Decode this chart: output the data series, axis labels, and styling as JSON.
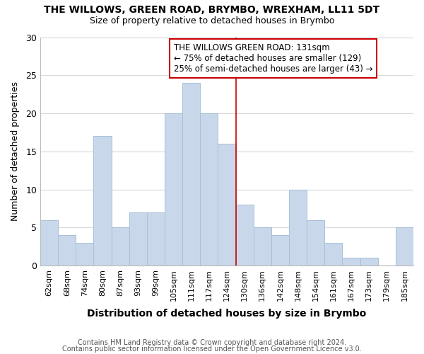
{
  "title": "THE WILLOWS, GREEN ROAD, BRYMBO, WREXHAM, LL11 5DT",
  "subtitle": "Size of property relative to detached houses in Brymbo",
  "xlabel": "Distribution of detached houses by size in Brymbo",
  "ylabel": "Number of detached properties",
  "bar_color": "#c8d8ea",
  "bar_edge_color": "#a8c0d8",
  "categories": [
    "62sqm",
    "68sqm",
    "74sqm",
    "80sqm",
    "87sqm",
    "93sqm",
    "99sqm",
    "105sqm",
    "111sqm",
    "117sqm",
    "124sqm",
    "130sqm",
    "136sqm",
    "142sqm",
    "148sqm",
    "154sqm",
    "161sqm",
    "167sqm",
    "173sqm",
    "179sqm",
    "185sqm"
  ],
  "values": [
    6,
    4,
    3,
    17,
    5,
    7,
    7,
    20,
    24,
    20,
    16,
    8,
    5,
    4,
    10,
    6,
    3,
    1,
    1,
    0,
    5
  ],
  "ylim": [
    0,
    30
  ],
  "yticks": [
    0,
    5,
    10,
    15,
    20,
    25,
    30
  ],
  "annotation_title": "THE WILLOWS GREEN ROAD: 131sqm",
  "annotation_line1": "← 75% of detached houses are smaller (129)",
  "annotation_line2": "25% of semi-detached houses are larger (43) →",
  "marker_bin_index": 11,
  "footer1": "Contains HM Land Registry data © Crown copyright and database right 2024.",
  "footer2": "Contains public sector information licensed under the Open Government Licence v3.0.",
  "grid_color": "#d8d8d8",
  "annotation_box_color": "#ffffff",
  "annotation_box_edge": "#cc0000",
  "marker_line_color": "#cc0000"
}
